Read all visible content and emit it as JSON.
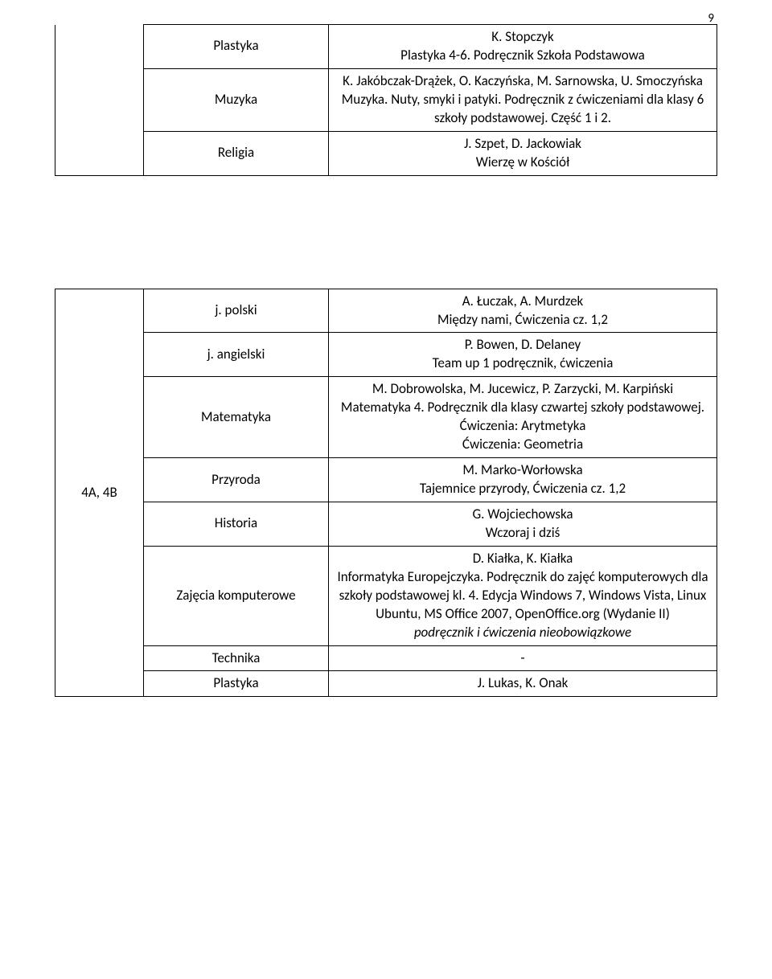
{
  "page_number": "9",
  "top_table": {
    "rows": [
      {
        "subject": "Plastyka",
        "content": "K. Stopczyk\nPlastyka 4-6. Podręcznik Szkoła Podstawowa"
      },
      {
        "subject": "Muzyka",
        "content": "K. Jakóbczak-Drążek, O. Kaczyńska, M. Sarnowska, U. Smoczyńska\nMuzyka. Nuty, smyki i patyki. Podręcznik z ćwiczeniami dla klasy 6 szkoły podstawowej. Część 1 i 2."
      },
      {
        "subject": "Religia",
        "content": "J. Szpet, D. Jackowiak\nWierzę w Kościół"
      }
    ]
  },
  "bottom_table": {
    "left_label": "4A, 4B",
    "rows": [
      {
        "subject": "j. polski",
        "content": "A. Łuczak, A. Murdzek\nMiędzy nami, Ćwiczenia cz. 1,2"
      },
      {
        "subject": "j. angielski",
        "content": "P. Bowen, D. Delaney\nTeam up 1 podręcznik, ćwiczenia"
      },
      {
        "subject": "Matematyka",
        "content": "M. Dobrowolska, M. Jucewicz, P. Zarzycki, M. Karpiński\nMatematyka 4. Podręcznik dla klasy czwartej szkoły podstawowej.\nĆwiczenia: Arytmetyka\nĆwiczenia: Geometria"
      },
      {
        "subject": "Przyroda",
        "content": "M. Marko-Worłowska\nTajemnice przyrody, Ćwiczenia cz. 1,2"
      },
      {
        "subject": "Historia",
        "content": "G. Wojciechowska\nWczoraj i dziś"
      },
      {
        "subject": "Zajęcia komputerowe",
        "content_lines": [
          {
            "text": "D. Kiałka, K. Kiałka",
            "italic": false
          },
          {
            "text": "Informatyka Europejczyka.  Podręcznik do zajęć komputerowych dla szkoły podstawowej kl. 4. Edycja Windows 7, Windows Vista, Linux Ubuntu, MS Office 2007, OpenOffice.org (Wydanie II)",
            "italic": false
          },
          {
            "text": "podręcznik i ćwiczenia nieobowiązkowe",
            "italic": true
          }
        ]
      },
      {
        "subject": "Technika",
        "content": "-"
      },
      {
        "subject": "Plastyka",
        "content": "J. Lukas, K. Onak"
      }
    ]
  }
}
